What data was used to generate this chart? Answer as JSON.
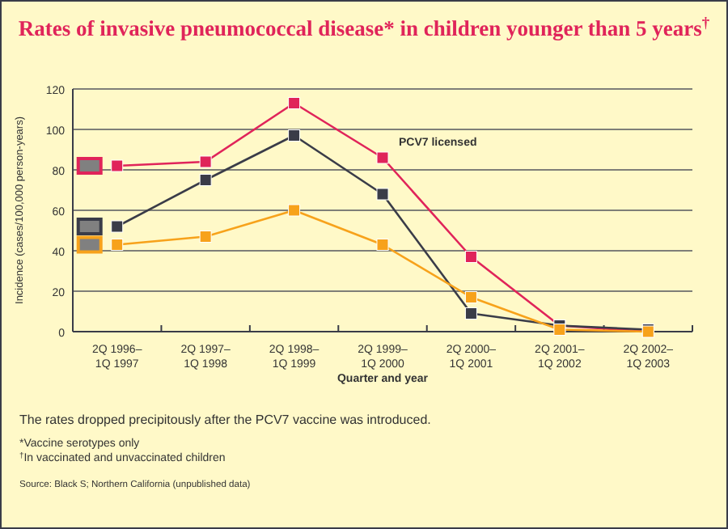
{
  "chart_data": {
    "type": "line",
    "title": "Rates of invasive pneumococcal disease* in children younger than 5 years$^{†}$",
    "xlabel": "Quarter and year",
    "ylabel": "Incidence (cases/100,000 person-years)",
    "categories": [
      "2Q 1996–\n1Q 1997",
      "2Q 1997–\n1Q 1998",
      "2Q 1998–\n1Q 1999",
      "2Q 1999–\n1Q 2000",
      "2Q 2000–\n1Q 2001",
      "2Q 2001–\n1Q 2002",
      "2Q 2002–\n1Q 2003"
    ],
    "series": [
      {
        "color": "#e0245a",
        "values": [
          82,
          84,
          113,
          86,
          37,
          3,
          0
        ]
      },
      {
        "color": "#3a3c48",
        "values": [
          52,
          75,
          97,
          68,
          9,
          3,
          1
        ]
      },
      {
        "color": "#f7a21b",
        "values": [
          43,
          47,
          60,
          43,
          17,
          1,
          0
        ]
      }
    ],
    "ylim": [
      0,
      120
    ],
    "yticks": [
      0,
      20,
      40,
      60,
      80,
      100,
      120
    ],
    "grid": "y",
    "marker": "square",
    "annotations": [
      "PCV7 licensed",
      "The rates dropped precipitously after the PCV7 vaccine was introduced.",
      "*Vaccine serotypes only",
      "$^{†}$In vaccinated and unvaccinated children",
      "Source: Black S; Northern California (unpublished data)"
    ]
  }
}
